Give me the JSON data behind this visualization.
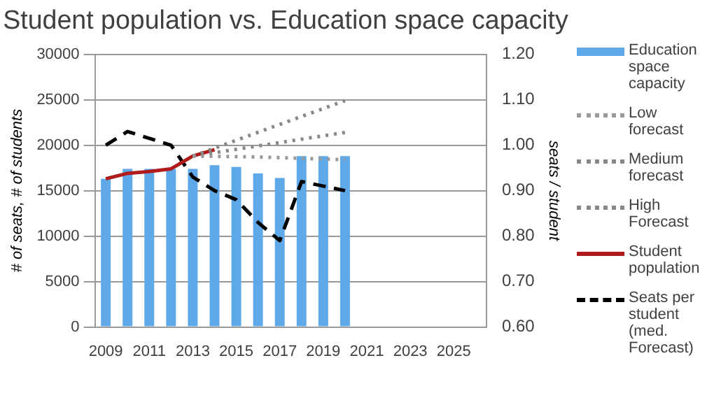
{
  "chart_data": {
    "type": "bar",
    "title": "Student population vs. Education space capacity",
    "ylabel": "# of seats, # of students",
    "y2label": "seats / student",
    "categories": [
      "2009",
      null,
      "2011",
      null,
      "2013",
      null,
      "2015",
      null,
      "2017",
      null,
      "2019",
      null,
      "2021",
      null,
      "2023",
      null,
      "2025",
      null
    ],
    "series": [
      {
        "name": "Education space capacity",
        "color": "#5fa9e8",
        "values": [
          16300,
          17400,
          17400,
          17400,
          17400,
          17800,
          17600,
          16900,
          16400,
          18800,
          18800,
          18800,
          null,
          null,
          null,
          null,
          null,
          null
        ]
      },
      {
        "name": "Low forecast",
        "type": "line",
        "color": "#999999",
        "line_style": "dotted",
        "values": [
          null,
          null,
          null,
          null,
          18800,
          null,
          null,
          18700,
          null,
          null,
          null,
          18400,
          null,
          null,
          null,
          null,
          null,
          null
        ]
      },
      {
        "name": "Medium forecast",
        "type": "line",
        "color": "#888888",
        "line_style": "dotted",
        "values": [
          null,
          null,
          null,
          null,
          18800,
          null,
          null,
          null,
          null,
          null,
          null,
          21400,
          null,
          null,
          null,
          null,
          null,
          null
        ]
      },
      {
        "name": "High Forecast",
        "type": "line",
        "color": "#888888",
        "line_style": "dotted",
        "values": [
          null,
          null,
          null,
          null,
          18800,
          null,
          null,
          null,
          null,
          null,
          null,
          24900,
          null,
          null,
          null,
          null,
          null,
          null
        ]
      },
      {
        "name": "Student population",
        "type": "line",
        "color": "#b01c1c",
        "line_style": "solid",
        "values": [
          16300,
          16900,
          17100,
          17400,
          18800,
          19500,
          null,
          null,
          null,
          null,
          null,
          null,
          null,
          null,
          null,
          null,
          null,
          null
        ]
      },
      {
        "name": "Seats per student (med. Forecast)",
        "type": "line",
        "color": "#000000",
        "line_style": "dashed",
        "axis": "y2",
        "values": [
          1.0,
          1.03,
          1.015,
          1.0,
          0.93,
          0.9,
          0.88,
          0.83,
          0.79,
          0.92,
          0.91,
          0.9,
          null,
          null,
          null,
          null,
          null,
          null
        ]
      }
    ],
    "ylim": [
      0,
      30000
    ],
    "yticks": [
      0,
      5000,
      10000,
      15000,
      20000,
      25000,
      30000
    ],
    "y2lim": [
      0.6,
      1.2
    ],
    "y2ticks": [
      {
        "value": 0.6,
        "label": "0.60"
      },
      {
        "value": 0.7,
        "label": "0.70"
      },
      {
        "value": 0.8,
        "label": "0.80"
      },
      {
        "value": 0.9,
        "label": "0.90"
      },
      {
        "value": 1.0,
        "label": "1.00"
      },
      {
        "value": 1.1,
        "label": "1.10"
      },
      {
        "value": 1.2,
        "label": "1.20"
      }
    ],
    "grid": "y",
    "legend": "right",
    "marker": "none"
  }
}
